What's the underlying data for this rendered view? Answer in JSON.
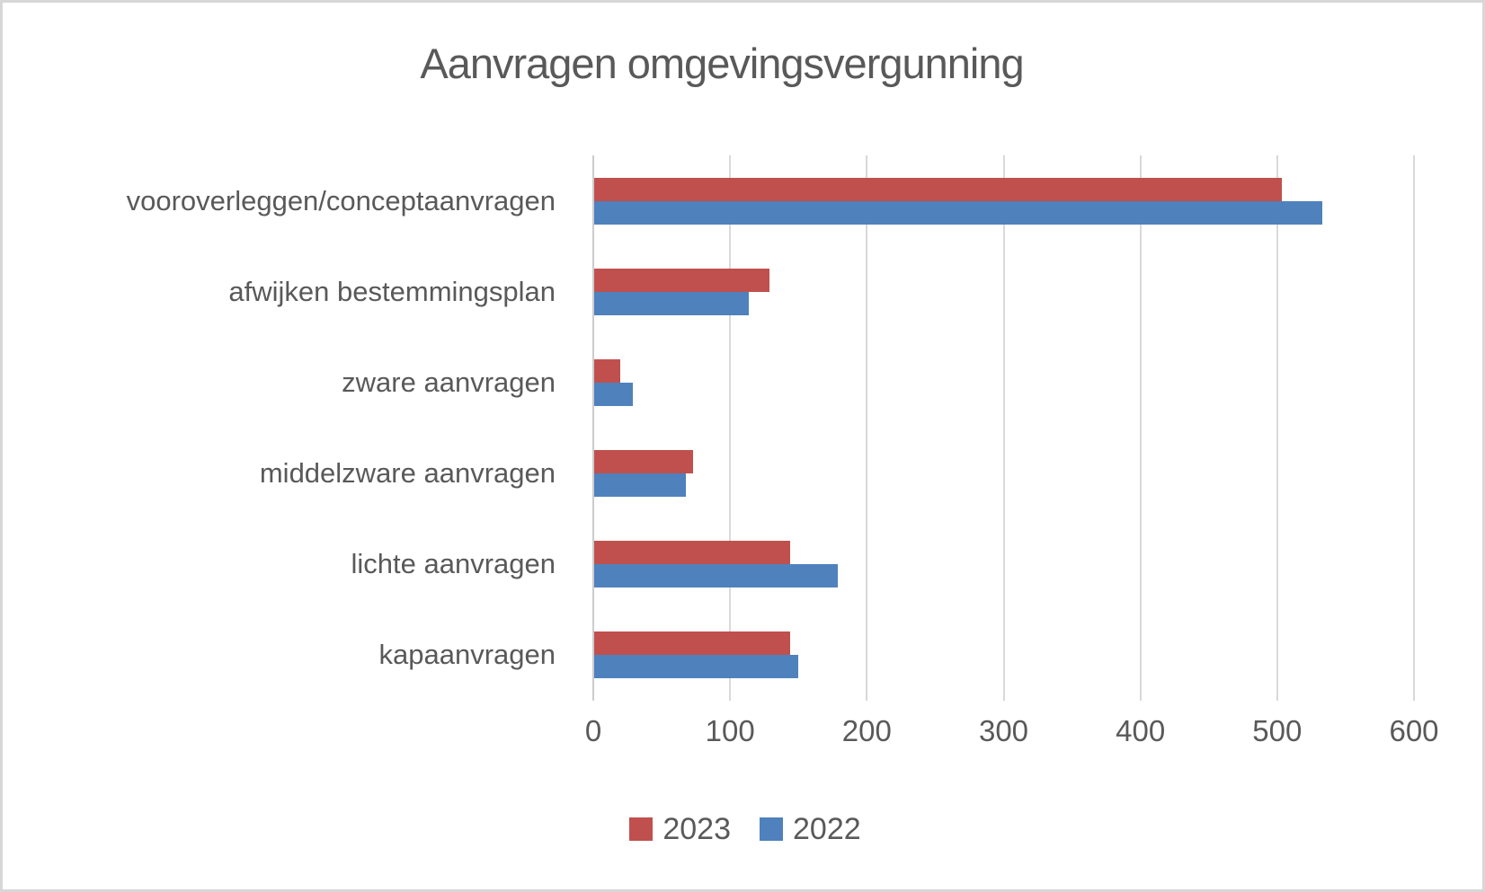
{
  "chart_data": {
    "type": "bar",
    "orientation": "horizontal",
    "title": "Aanvragen omgevingsvergunning",
    "categories": [
      "vooroverleggen/conceptaanvragen",
      "afwijken bestemmingsplan",
      "zware aanvragen",
      "middelzware aanvragen",
      "lichte aanvragen",
      "kapaanvragen"
    ],
    "series": [
      {
        "name": "2023",
        "color": "#C0504D",
        "values": [
          503,
          128,
          19,
          72,
          143,
          143
        ]
      },
      {
        "name": "2022",
        "color": "#4F81BD",
        "values": [
          532,
          113,
          28,
          67,
          178,
          149
        ]
      }
    ],
    "xlim": [
      0,
      600
    ],
    "x_ticks": [
      0,
      100,
      200,
      300,
      400,
      500,
      600
    ],
    "grid": true,
    "legend_position": "bottom",
    "colors": {
      "text": "#595959",
      "gridline": "#D9D9D9",
      "background": "#FFFFFF"
    }
  }
}
